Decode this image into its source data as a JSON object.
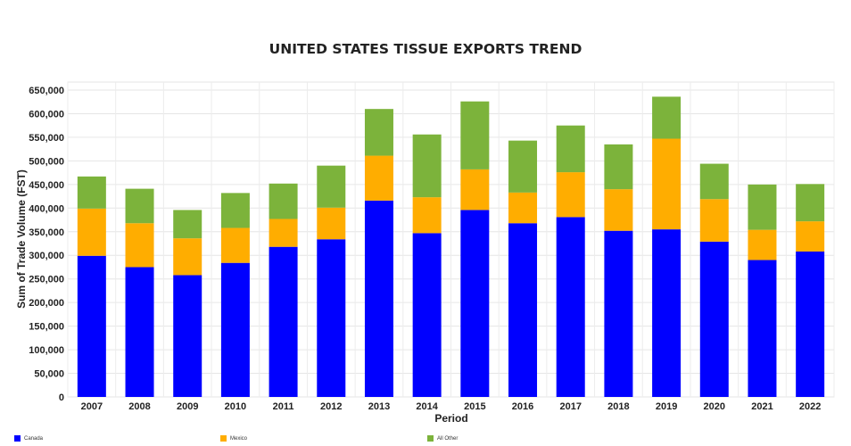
{
  "chart_data": {
    "type": "bar",
    "stacked": true,
    "title": "UNITED STATES TISSUE EXPORTS TREND",
    "xlabel": "Period",
    "ylabel": "Sum of Trade Volume (FST)",
    "ylim": [
      0,
      650000
    ],
    "yticks": [
      0,
      50000,
      100000,
      150000,
      200000,
      250000,
      300000,
      350000,
      400000,
      450000,
      500000,
      550000,
      600000,
      650000
    ],
    "ytick_labels": [
      "0",
      "50,000",
      "100,000",
      "150,000",
      "200,000",
      "250,000",
      "300,000",
      "350,000",
      "400,000",
      "450,000",
      "500,000",
      "550,000",
      "600,000",
      "650,000"
    ],
    "grid": true,
    "legend_position": "bottom",
    "categories": [
      "2007",
      "2008",
      "2009",
      "2010",
      "2011",
      "2012",
      "2013",
      "2014",
      "2015",
      "2016",
      "2017",
      "2018",
      "2019",
      "2020",
      "2021",
      "2022"
    ],
    "series": [
      {
        "name": "Canada",
        "color": "#0000ff",
        "values": [
          299000,
          275000,
          258000,
          284000,
          318000,
          334000,
          416000,
          347000,
          396000,
          368000,
          381000,
          352000,
          355000,
          329000,
          290000,
          308000
        ]
      },
      {
        "name": "Mexico",
        "color": "#ffad00",
        "values": [
          100000,
          93000,
          78000,
          74000,
          59000,
          67000,
          95000,
          76000,
          86000,
          65000,
          95000,
          88000,
          192000,
          90000,
          64000,
          64000
        ]
      },
      {
        "name": "All Other",
        "color": "#7cb33b",
        "values": [
          68000,
          73000,
          60000,
          74000,
          75000,
          89000,
          99000,
          133000,
          144000,
          110000,
          99000,
          95000,
          89000,
          75000,
          96000,
          79000
        ]
      }
    ]
  }
}
